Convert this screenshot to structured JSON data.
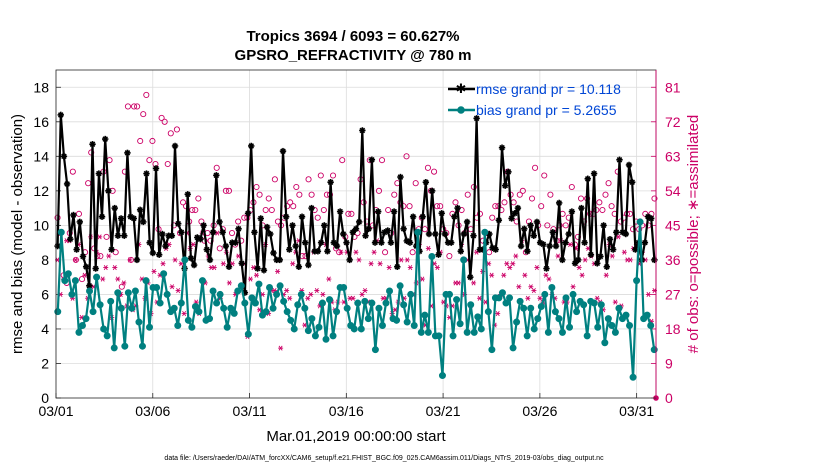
{
  "chart_data": {
    "type": "line",
    "title_line1": "Tropics 3694 / 6093 = 60.627%",
    "title_line2": "GPSRO_REFRACTIVITY @ 780 m",
    "xlabel": "Mar.01,2019 00:00:00 start",
    "ylabel": "rmse and bias (model - observation)",
    "ylabel_right": "# of obs: o=possible; ∗=assimilated",
    "xlim": [
      0,
      31
    ],
    "ylim": [
      0,
      19
    ],
    "ylim_right": [
      0,
      85.5
    ],
    "x_ticks": [
      0,
      5,
      10,
      15,
      20,
      25,
      30
    ],
    "x_tick_labels": [
      "03/01",
      "03/06",
      "03/11",
      "03/16",
      "03/21",
      "03/26",
      "03/31"
    ],
    "y_ticks": [
      0,
      2,
      4,
      6,
      8,
      10,
      12,
      14,
      16,
      18
    ],
    "y_tick_labels": [
      "0",
      "2",
      "4",
      "6",
      "8",
      "10",
      "12",
      "14",
      "16",
      "18"
    ],
    "y_right_ticks": [
      0,
      9,
      18,
      27,
      36,
      45,
      54,
      63,
      72,
      81
    ],
    "y_right_tick_labels": [
      "0",
      "9",
      "18",
      "27",
      "36",
      "45",
      "54",
      "63",
      "72",
      "81"
    ],
    "grid": true,
    "footer": "data file: /Users/raeder/DAI/ATM_forcXX/CAM6_setup/f.e21.FHIST_BGC.f09_025.CAM6assim.011/Diags_NTrS_2019-03/obs_diag_output.nc",
    "colors": {
      "rmse": "#000000",
      "bias": "#008080",
      "obs": "#cc0066",
      "legend_text": "#0046d5"
    },
    "series": [
      {
        "name": "rmse grand pr = 10.118",
        "values": [
          8.8,
          16.4,
          14.0,
          12.4,
          9.2,
          10.6,
          8.6,
          10.2,
          8.2,
          7.6,
          6.5,
          14.7,
          7.5,
          13.0,
          10.5,
          15.0,
          12.0,
          8.6,
          11.0,
          9.4,
          10.4,
          9.4,
          14.2,
          10.5,
          10.4,
          8.0,
          10.9,
          10.2,
          13.0,
          9.0,
          8.4,
          13.3,
          8.3,
          9.5,
          8.8,
          9.4,
          9.4,
          14.6,
          10.1,
          9.6,
          7.5,
          11.8,
          8.1,
          7.7,
          9.3,
          9.2,
          10.0,
          8.6,
          8.0,
          9.6,
          12.9,
          10.2,
          9.6,
          8.8,
          7.6,
          9.0,
          9.0,
          9.8,
          7.8,
          6.1,
          10.7,
          14.6,
          9.6,
          7.5,
          10.4,
          7.4,
          9.9,
          9.5,
          8.4,
          8.0,
          8.0,
          14.3,
          10.5,
          8.6,
          10.0,
          8.8,
          7.6,
          10.5,
          9.0,
          7.7,
          11.0,
          8.5,
          8.5,
          9.0,
          10.0,
          8.5,
          12.5,
          9.0,
          8.8,
          10.8,
          9.5,
          9.0,
          8.0,
          9.6,
          9.8,
          10.2,
          15.5,
          9.4,
          9.8,
          13.8,
          9.0,
          10.8,
          9.0,
          9.6,
          9.7,
          9.0,
          10.8,
          7.6,
          12.8,
          9.8,
          9.1,
          9.0,
          10.5,
          8.8,
          8.5,
          10.5,
          12.5,
          9.5,
          12.0,
          9.5,
          8.3,
          10.7,
          9.5,
          9.0,
          9.0,
          10.5,
          11.0,
          8.5,
          9.5,
          10.2,
          7.0,
          9.4,
          16.2,
          8.6,
          8.6,
          9.0,
          9.5,
          8.7,
          8.6,
          10.3,
          14.5,
          12.3,
          13.1,
          10.4,
          10.7,
          11.0,
          8.8,
          9.8,
          8.5,
          10.0,
          9.4,
          10.2,
          9.0,
          8.9,
          7.5,
          8.8,
          9.6,
          8.8,
          11.3,
          8.0,
          9.0,
          9.5,
          10.8,
          7.8,
          8.0,
          11.0,
          9.0,
          12.7,
          8.3,
          13.0,
          7.8,
          8.2,
          10.0,
          7.6,
          9.2,
          8.6,
          9.6,
          13.8,
          9.6,
          9.5,
          13.5,
          12.5,
          8.6,
          9.0,
          8.0,
          9.0,
          10.5,
          10.4,
          8.0
        ]
      },
      {
        "name": "bias grand pr = 5.2655",
        "values": [
          5.0,
          9.6,
          6.8,
          7.2,
          6.0,
          6.8,
          3.8,
          4.2,
          4.6,
          6.2,
          5.0,
          7.0,
          5.4,
          4.0,
          3.6,
          5.6,
          2.9,
          6.1,
          5.2,
          3.0,
          6.1,
          5.2,
          6.2,
          4.4,
          3.0,
          6.8,
          4.1,
          6.4,
          6.4,
          5.5,
          7.2,
          6.0,
          5.0,
          5.2,
          4.2,
          5.5,
          8.0,
          4.5,
          4.1,
          5.3,
          5.0,
          6.8,
          4.5,
          4.6,
          6.2,
          5.5,
          6.0,
          5.2,
          4.1,
          5.2,
          4.9,
          6.2,
          6.5,
          5.5,
          3.7,
          5.8,
          5.5,
          6.6,
          4.8,
          5.0,
          6.4,
          5.2,
          6.0,
          6.5,
          5.6,
          5.0,
          4.5,
          4.0,
          5.4,
          6.0,
          5.2,
          3.9,
          4.6,
          3.6,
          4.1,
          5.5,
          3.4,
          5.7,
          3.6,
          5.0,
          6.4,
          6.4,
          5.2,
          4.2,
          4.0,
          5.5,
          4.0,
          5.6,
          4.6,
          5.5,
          2.8,
          5.2,
          4.2,
          5.5,
          6.2,
          4.6,
          4.5,
          6.5,
          5.4,
          4.4,
          6.0,
          4.2,
          9.6,
          3.8,
          4.8,
          3.8,
          8.2,
          3.6,
          3.6,
          1.3,
          6.0,
          6.0,
          3.6,
          5.7,
          4.3,
          8.0,
          3.8,
          5.4,
          3.8,
          4.7,
          4.0,
          9.6,
          5.0,
          2.8,
          5.8,
          5.8,
          6.1,
          5.5,
          5.8,
          2.9,
          4.4,
          5.6,
          5.2,
          3.6,
          5.2,
          4.0,
          4.6,
          5.3,
          6.0,
          3.8,
          6.4,
          5.0,
          4.6,
          3.8,
          5.8,
          4.1,
          6.0,
          5.0,
          5.6,
          5.4,
          3.6,
          5.6,
          5.5,
          4.1,
          5.4,
          3.2,
          4.6,
          4.2,
          3.8,
          5.2,
          4.6,
          4.8,
          4.2,
          1.2,
          6.8,
          10.2,
          4.6,
          4.8,
          4.2,
          2.8
        ]
      }
    ],
    "obs_possible": [
      47,
      43,
      32,
      30,
      43,
      59,
      36,
      48,
      31,
      38,
      56,
      64,
      39,
      37,
      37,
      59,
      42,
      62,
      54,
      38,
      27,
      29,
      59,
      76,
      36,
      76,
      76,
      67,
      74,
      79,
      62,
      67,
      61,
      44,
      73,
      72,
      61,
      69,
      45,
      70,
      43,
      51,
      50,
      46,
      49,
      49,
      52,
      46,
      41,
      43,
      41,
      45,
      60,
      39,
      44,
      54,
      54,
      43,
      40,
      46,
      41,
      47,
      47,
      49,
      51,
      55,
      53,
      45,
      49,
      52,
      49,
      57,
      46,
      45,
      47,
      50,
      51,
      50,
      55,
      53,
      37,
      37,
      57,
      53,
      49,
      47,
      58,
      49,
      53,
      53,
      58,
      39,
      38,
      62,
      42,
      48,
      48,
      42,
      43,
      57,
      51,
      46,
      62,
      45,
      49,
      54,
      62,
      38,
      49,
      43,
      53,
      56,
      51,
      50,
      63,
      50,
      38,
      56,
      44,
      47,
      44,
      60,
      54,
      59,
      50,
      50,
      44,
      43,
      37,
      48,
      51,
      45,
      49,
      43,
      53,
      44,
      55,
      47,
      48,
      41,
      43,
      38,
      47,
      50,
      50,
      49,
      51,
      59,
      53,
      51,
      46,
      53,
      54,
      38,
      46,
      52,
      60,
      45,
      50,
      58,
      45,
      53,
      44,
      41,
      45,
      48,
      45,
      47,
      55,
      40,
      42,
      52,
      46,
      52,
      48,
      48,
      49,
      51,
      49,
      53,
      56,
      50,
      48,
      59,
      46,
      47,
      48,
      48,
      44,
      46,
      44,
      45,
      48,
      45,
      48,
      52
    ],
    "obs_assimilated": [
      36,
      27,
      31,
      41,
      41,
      26,
      36,
      40,
      21,
      32,
      26,
      42,
      29,
      38,
      42,
      31,
      34,
      37,
      21,
      34,
      31,
      27,
      30,
      24,
      36,
      23,
      24,
      40,
      31,
      26,
      30,
      22,
      33,
      25,
      32,
      35,
      39,
      40,
      29,
      36,
      28,
      35,
      22,
      43,
      39,
      40,
      25,
      22,
      43,
      30,
      37,
      34,
      34,
      43,
      26,
      35,
      38,
      30,
      35,
      27,
      37,
      29,
      35,
      16,
      31,
      34,
      32,
      23,
      27,
      40,
      22,
      28,
      28,
      33,
      13,
      27,
      28,
      26,
      35,
      38,
      41,
      28,
      19,
      26,
      27,
      38,
      28,
      24,
      27,
      40,
      31,
      25,
      23,
      25,
      38,
      25,
      38,
      26,
      26,
      38,
      36,
      27,
      28,
      25,
      35,
      38,
      41,
      35,
      26,
      26,
      34,
      22,
      23,
      25,
      36,
      26,
      36,
      34,
      27,
      30,
      40,
      31,
      19,
      39,
      24,
      35,
      34,
      38,
      25,
      24,
      21,
      24,
      30,
      30,
      40,
      27,
      36,
      24,
      30,
      38,
      26,
      33,
      25,
      35,
      32,
      19,
      22,
      27,
      32,
      35,
      34,
      35,
      37,
      29,
      41,
      32,
      26,
      29,
      28,
      34,
      26,
      25,
      32,
      31,
      27,
      26,
      37,
      41,
      25,
      25,
      40,
      29,
      39,
      34,
      32,
      36,
      39,
      37,
      35,
      26,
      25,
      23,
      32,
      40,
      37,
      25,
      42,
      24,
      38,
      36,
      36,
      39,
      40,
      35,
      38,
      36,
      27,
      20,
      28
    ]
  }
}
